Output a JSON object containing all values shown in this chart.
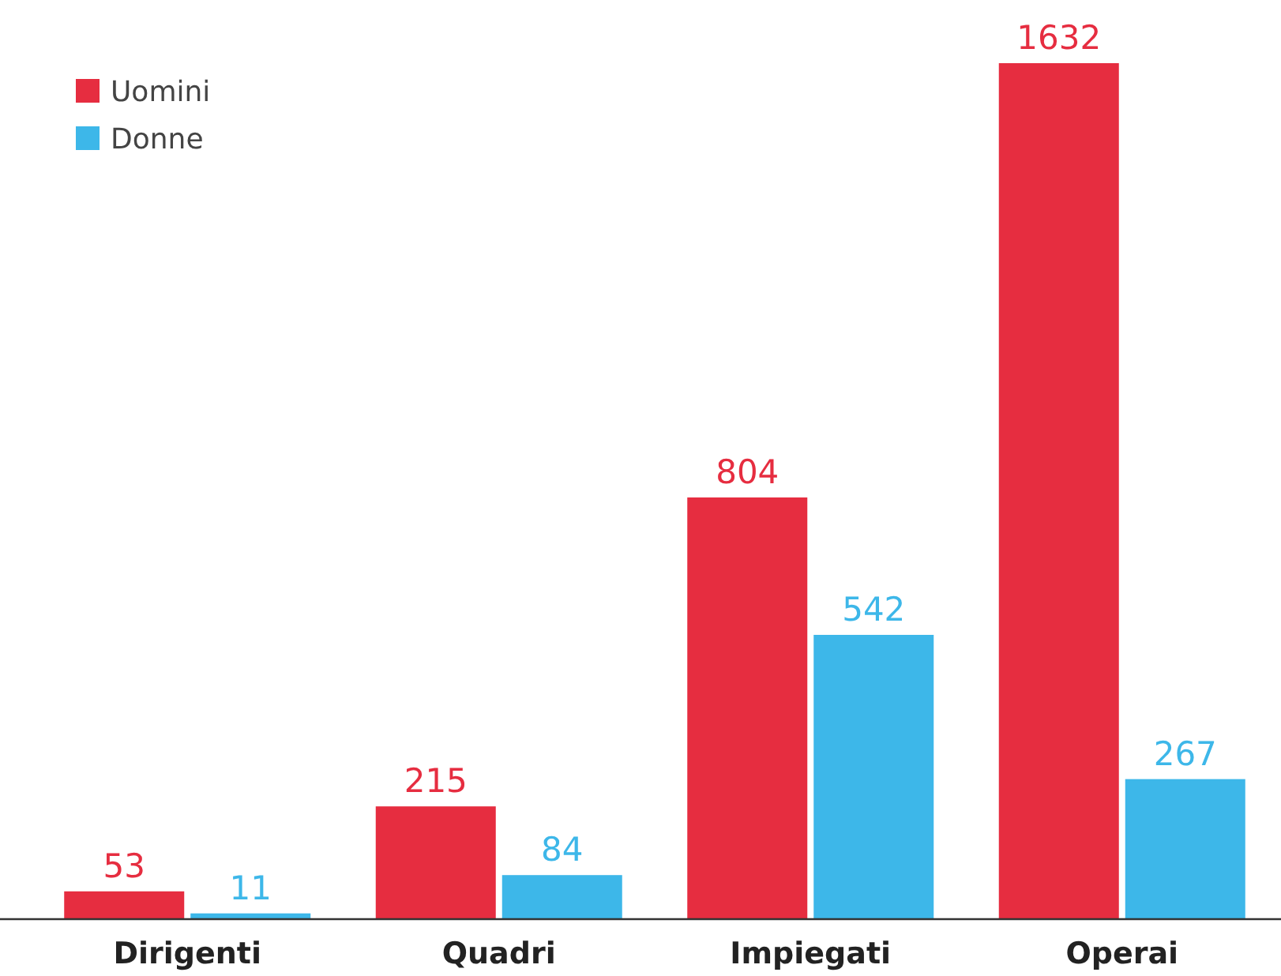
{
  "chart_data": {
    "type": "bar",
    "categories": [
      "Dirigenti",
      "Quadri",
      "Impiegati",
      "Operai"
    ],
    "series": [
      {
        "name": "Uomini",
        "color": "#e62d40",
        "values": [
          53,
          215,
          804,
          1632
        ]
      },
      {
        "name": "Donne",
        "color": "#3db7e9",
        "values": [
          11,
          84,
          542,
          267
        ]
      }
    ],
    "data_labels": true,
    "legend": "top left"
  }
}
